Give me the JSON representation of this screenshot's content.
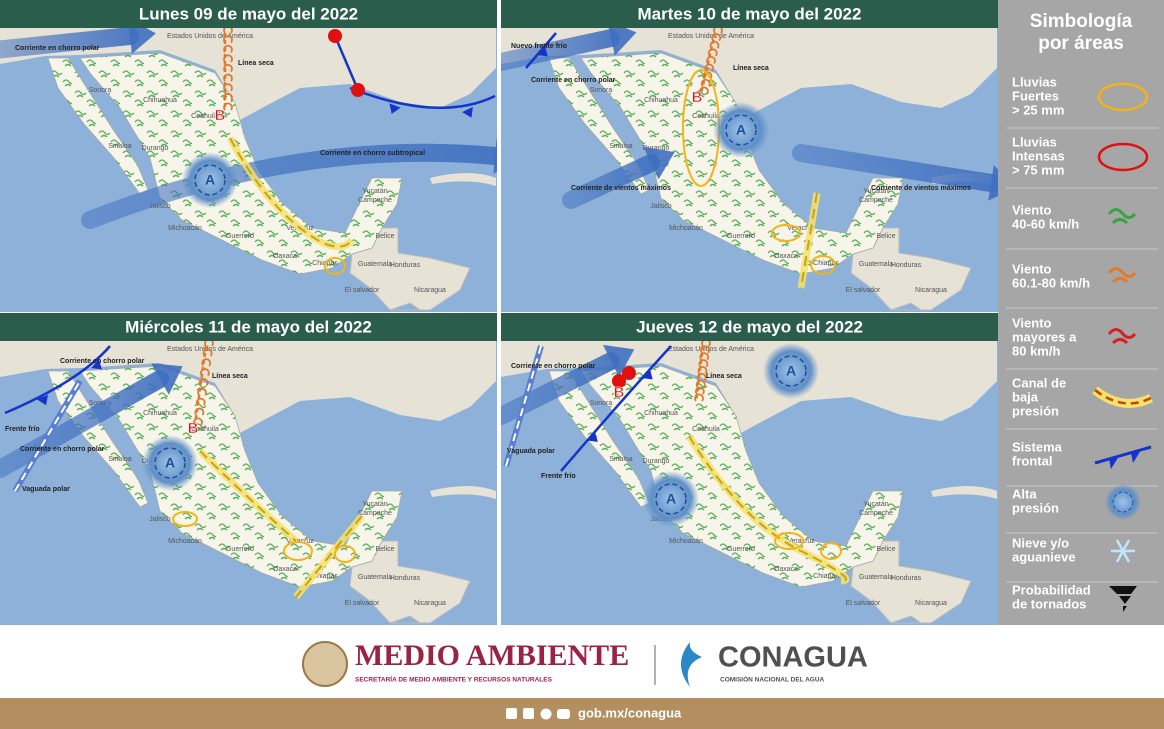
{
  "panels": [
    {
      "title": "Lunes 09 de mayo del 2022",
      "annotations": [
        "Corriente en chorro polar",
        "Línea seca",
        "Corriente en chorro subtropical"
      ],
      "pressure": [
        "B",
        "A"
      ]
    },
    {
      "title": "Martes 10 de mayo del 2022",
      "annotations": [
        "Nuevo frente frío",
        "Corriente en chorro polar",
        "Línea seca",
        "Corriente de vientos máximos",
        "Corriente de vientos máximos"
      ],
      "pressure": [
        "B",
        "A"
      ]
    },
    {
      "title": "Miércoles 11 de mayo del 2022",
      "annotations": [
        "Corriente en chorro polar",
        "Frente frío",
        "Corriente en chorro polar",
        "Vaguada polar",
        "Línea seca"
      ],
      "pressure": [
        "B",
        "A"
      ]
    },
    {
      "title": "Jueves 12 de mayo del 2022",
      "annotations": [
        "Corriente en chorro polar",
        "Vaguada polar",
        "Frente frío",
        "Línea seca"
      ],
      "pressure": [
        "B",
        "A",
        "A"
      ]
    }
  ],
  "base_map": {
    "labels": [
      "Estados Unidos de América",
      "Sonora",
      "Chihuahua",
      "Coahuila",
      "Sinaloa",
      "Durango",
      "Jalisco",
      "Michoacán",
      "Guerrero",
      "Oaxaca",
      "Veracruz",
      "Chiapas",
      "Campeche",
      "Yucatán",
      "Belice",
      "Guatemala",
      "Honduras",
      "El salvador",
      "Nicaragua"
    ]
  },
  "legend": {
    "title": [
      "Simbología",
      "por áreas"
    ],
    "items": [
      {
        "label": [
          "Lluvias",
          "Fuertes",
          "> 25 mm"
        ]
      },
      {
        "label": [
          "Lluvias",
          "Intensas",
          "> 75 mm"
        ]
      },
      {
        "label": [
          "Viento",
          "40-60 km/h"
        ]
      },
      {
        "label": [
          "Viento",
          "60.1-80 km/h"
        ]
      },
      {
        "label": [
          "Viento",
          "mayores a",
          "80 km/h"
        ]
      },
      {
        "label": [
          "Canal de",
          "baja",
          "presión"
        ]
      },
      {
        "label": [
          "Sistema",
          "frontal"
        ]
      },
      {
        "label": [
          "Alta",
          "presión"
        ]
      },
      {
        "label": [
          "Nieve y/o",
          "aguanieve"
        ]
      },
      {
        "label": [
          "Probabilidad",
          "de tornados"
        ]
      }
    ]
  },
  "footer": {
    "semarnat": "MEDIO AMBIENTE",
    "semarnat_sub": "SECRETARÍA DE MEDIO AMBIENTE Y RECURSOS NATURALES",
    "conagua": "CONAGUA",
    "conagua_sub": "COMISIÓN NACIONAL DEL AGUA",
    "url": "gob.mx/conagua"
  }
}
